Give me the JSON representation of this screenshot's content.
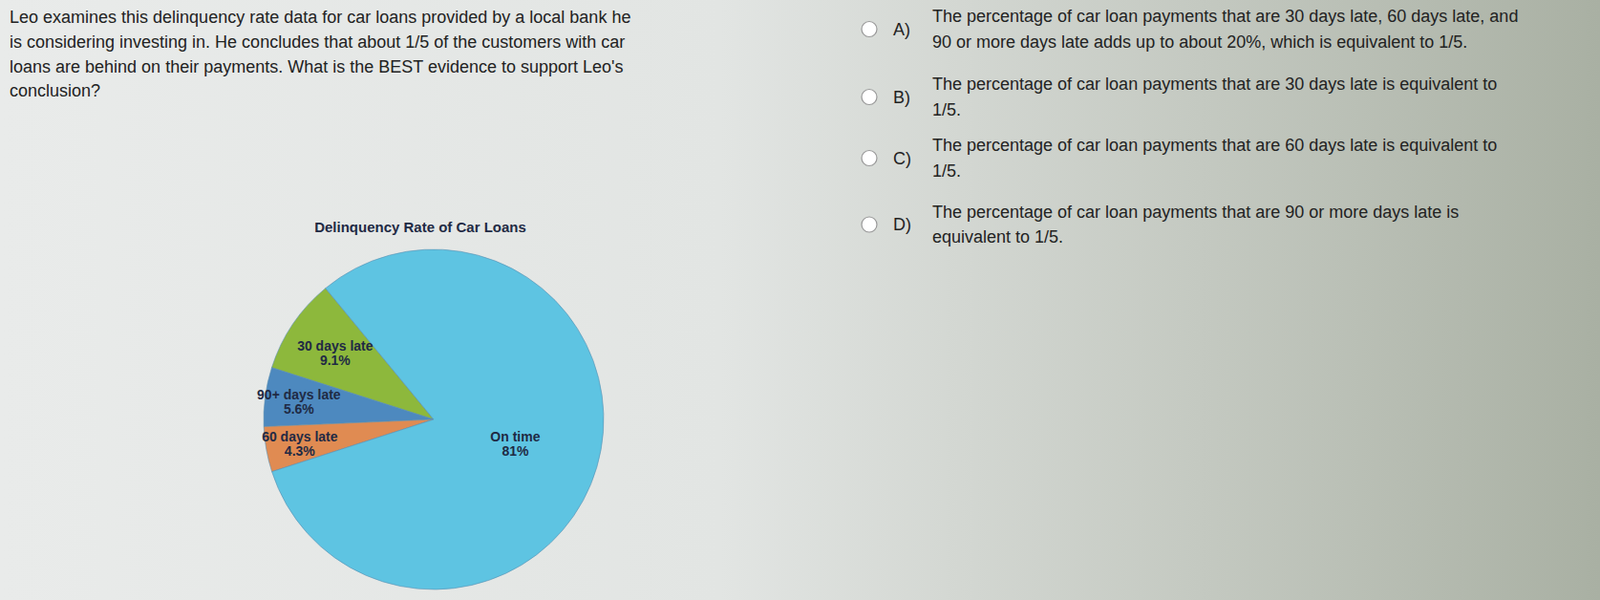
{
  "question": [
    "Leo examines this delinquency rate data for car loans provided by a local bank he",
    "is considering investing in. He concludes that about 1/5 of the customers with car",
    "loans are behind on their payments. What is the BEST evidence to support Leo's",
    "conclusion?"
  ],
  "options": [
    {
      "letter": "A)",
      "lines": [
        "The percentage of car loan payments that are 30 days late, 60 days late, and",
        "90 or more days late adds up to about 20%, which is equivalent to 1/5."
      ]
    },
    {
      "letter": "B)",
      "lines": [
        "The percentage of car loan payments that are 30 days late is equivalent to",
        "1/5."
      ]
    },
    {
      "letter": "C)",
      "lines": [
        "The percentage of car loan payments that are 60 days late is equivalent to",
        "1/5."
      ]
    },
    {
      "letter": "D)",
      "lines": [
        "The percentage of car loan payments that are 90 or more days late is",
        "equivalent to 1/5."
      ]
    }
  ],
  "chart_data": {
    "type": "pie",
    "title": "Delinquency Rate of Car Loans",
    "categories": [
      "30 days late",
      "90+ days late",
      "60 days late",
      "On time"
    ],
    "values": [
      9.1,
      5.6,
      4.3,
      81
    ],
    "value_labels": [
      "9.1%",
      "5.6%",
      "4.3%",
      "81%"
    ],
    "colors": [
      "#8db83c",
      "#4d89bf",
      "#e08b52",
      "#5ec4e2"
    ],
    "data_labels": true
  }
}
